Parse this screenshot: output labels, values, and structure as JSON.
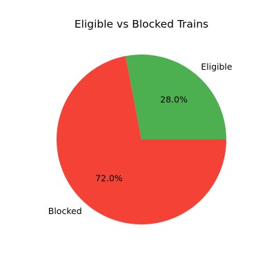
{
  "chart_data": {
    "type": "pie",
    "title": "Eligible vs Blocked Trains",
    "labels": [
      "Eligible",
      "Blocked"
    ],
    "values": [
      28.0,
      72.0
    ],
    "percent_labels": [
      "28.0%",
      "72.0%"
    ],
    "colors": [
      "#4caf50",
      "#f44336"
    ],
    "start_angle_deg": 0,
    "direction": "counterclockwise",
    "legend": "none"
  }
}
